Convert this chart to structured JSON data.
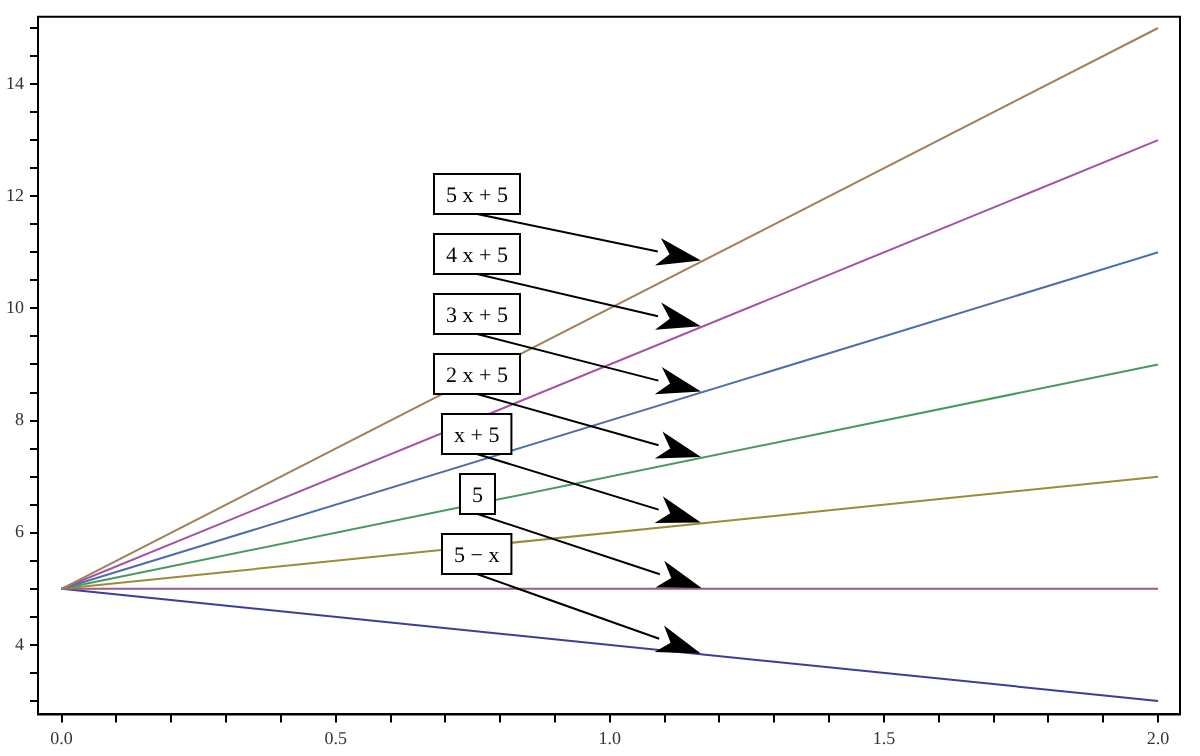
{
  "chart_data": {
    "type": "line",
    "x": [
      0,
      2
    ],
    "series": [
      {
        "color": "#a0805a",
        "values": [
          5,
          15
        ]
      },
      {
        "color": "#a452a4",
        "values": [
          5,
          13
        ]
      },
      {
        "color": "#4d6eaa",
        "values": [
          5,
          11
        ]
      },
      {
        "color": "#489a5c",
        "values": [
          5,
          9
        ]
      },
      {
        "color": "#9a8c38",
        "values": [
          5,
          7
        ]
      },
      {
        "color": "#9c5a80",
        "values": [
          5,
          5
        ]
      },
      {
        "color": "#3c3c9c",
        "values": [
          5,
          3
        ]
      }
    ],
    "annotations": [
      "5 x + 5",
      "4 x + 5",
      "3 x + 5",
      "2 x + 5",
      "x + 5",
      "5",
      "5 − x"
    ],
    "xlim": [
      -0.043,
      2.04
    ],
    "ylim": [
      2.76,
      15.2
    ],
    "xticks": [
      {
        "value": 0,
        "label": "0.0"
      },
      {
        "value": 0.1,
        "label": null
      },
      {
        "value": 0.2,
        "label": null
      },
      {
        "value": 0.3,
        "label": null
      },
      {
        "value": 0.4,
        "label": null
      },
      {
        "value": 0.5,
        "label": "0.5"
      },
      {
        "value": 0.6,
        "label": null
      },
      {
        "value": 0.7,
        "label": null
      },
      {
        "value": 0.8,
        "label": null
      },
      {
        "value": 0.9,
        "label": null
      },
      {
        "value": 1,
        "label": "1.0"
      },
      {
        "value": 1.1,
        "label": null
      },
      {
        "value": 1.2,
        "label": null
      },
      {
        "value": 1.3,
        "label": null
      },
      {
        "value": 1.4,
        "label": null
      },
      {
        "value": 1.5,
        "label": "1.5"
      },
      {
        "value": 1.6,
        "label": null
      },
      {
        "value": 1.7,
        "label": null
      },
      {
        "value": 1.8,
        "label": null
      },
      {
        "value": 1.9,
        "label": null
      },
      {
        "value": 2,
        "label": "2.0"
      }
    ],
    "yticks": [
      {
        "value": 3,
        "label": null
      },
      {
        "value": 3.5,
        "label": null
      },
      4,
      {
        "value": 4.5,
        "label": null
      },
      {
        "value": 5,
        "label": null
      },
      {
        "value": 5.5,
        "label": null
      },
      6,
      {
        "value": 6.5,
        "label": null
      },
      {
        "value": 7,
        "label": null
      },
      {
        "value": 7.5,
        "label": null
      },
      8,
      {
        "value": 8.5,
        "label": null
      },
      {
        "value": 9,
        "label": null
      },
      {
        "value": 9.5,
        "label": null
      },
      10,
      {
        "value": 10.5,
        "label": null
      },
      {
        "value": 11,
        "label": null
      },
      {
        "value": 11.5,
        "label": null
      },
      12,
      {
        "value": 12.5,
        "label": null
      },
      {
        "value": 13,
        "label": null
      },
      {
        "value": 13.5,
        "label": null
      },
      14,
      {
        "value": 14.5,
        "label": null
      },
      {
        "value": 15,
        "label": null
      }
    ],
    "grid": false,
    "legend": false,
    "marker": "none",
    "line_style": "solid"
  }
}
